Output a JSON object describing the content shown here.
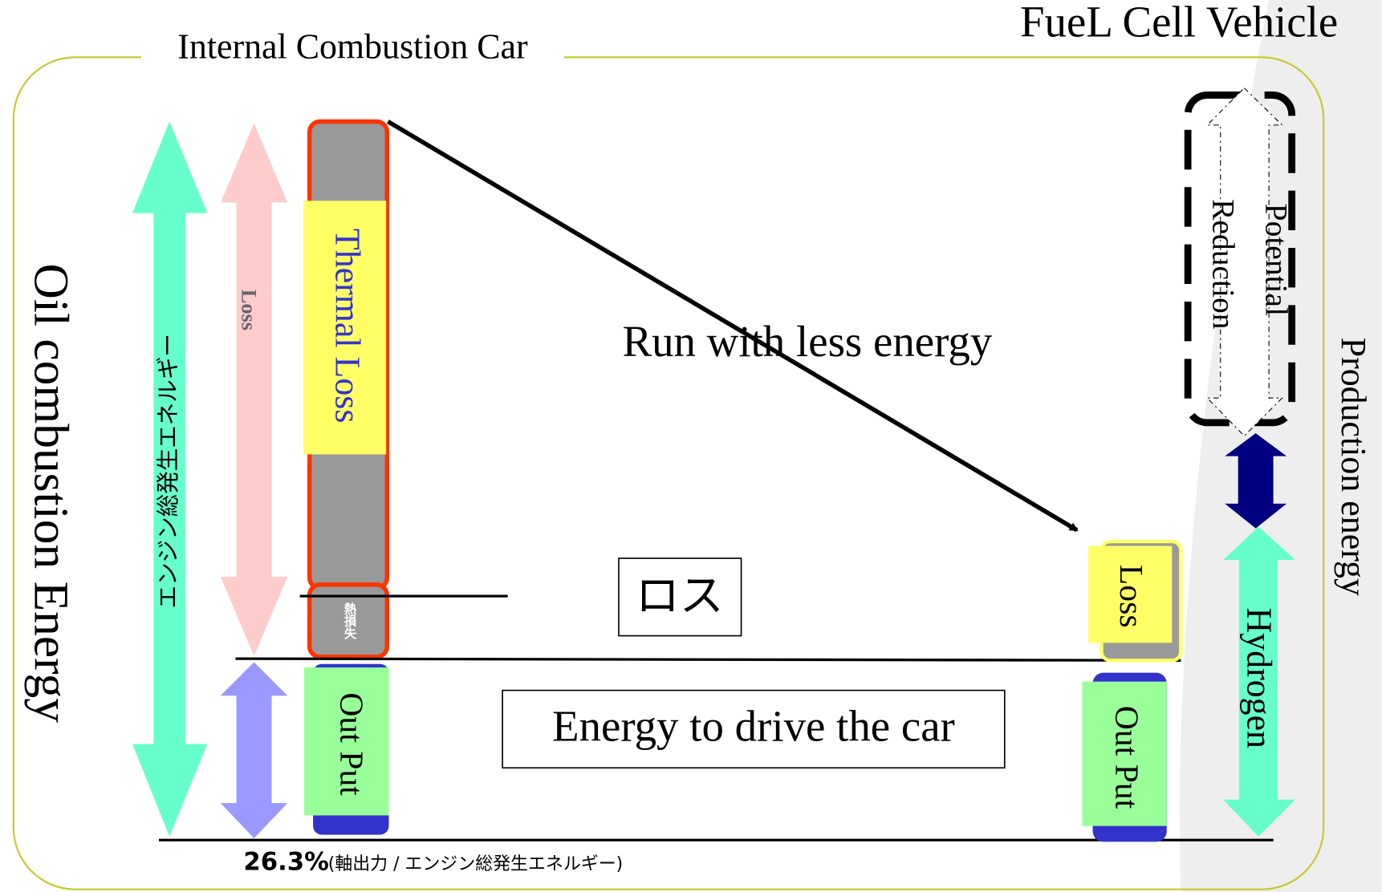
{
  "header": {
    "left_title": "Internal Combustion Car",
    "right_title": "FueL Cell Vehicle"
  },
  "left": {
    "axis_label": "Oil combustion Energy",
    "total_label": "エンジン総発生エネルギー",
    "loss_label": "Loss",
    "thermal_loss": "Thermal Loss",
    "small_loss": "熱損失",
    "output": "Out Put"
  },
  "middle": {
    "arrow_label": "Run with less energy",
    "loss_box": "ロス",
    "energy_box": "Energy to drive the car"
  },
  "right": {
    "loss": "Loss",
    "output": "Out Put",
    "potential": "Potential",
    "reduction": "Reduction",
    "hydrogen": "Hydrogen",
    "production": "Production energy"
  },
  "footer": {
    "ratio": "26.3%",
    "ratio_note": "(軸出力 / エンジン総発生エネルギー)"
  }
}
